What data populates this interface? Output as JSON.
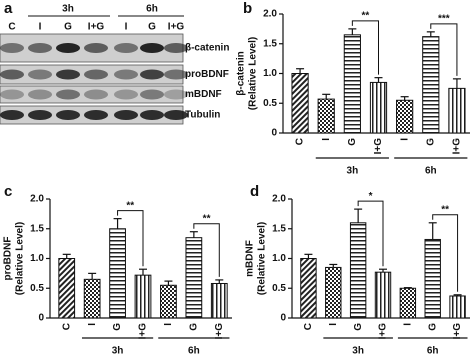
{
  "blot": {
    "panel": "a",
    "groups": [
      "3h",
      "6h"
    ],
    "lanes": [
      "C",
      "I",
      "G",
      "I+G",
      "I",
      "G",
      "I+G"
    ],
    "rows": [
      "β-catenin",
      "proBDNF",
      "mBDNF",
      "Tubulin"
    ]
  },
  "chart_data": [
    {
      "type": "bar",
      "panel": "b",
      "ylabel_lines": [
        "β-catenin",
        "(Relative Level)"
      ],
      "categories": [
        "C",
        "I",
        "G",
        "I+G",
        "I",
        "G",
        "I+G"
      ],
      "values": [
        1.0,
        0.57,
        1.65,
        0.85,
        0.55,
        1.62,
        0.75
      ],
      "errors": [
        0.08,
        0.08,
        0.1,
        0.08,
        0.06,
        0.08,
        0.16
      ],
      "groups": [
        "3h",
        "6h"
      ],
      "annotations": [
        "**",
        "***"
      ],
      "ylim": [
        0,
        2
      ],
      "yticks": [
        0,
        0.5,
        {
          "value": 1,
          "label": "1.0"
        },
        1.5,
        {
          "value": 2,
          "label": "2.0"
        }
      ]
    },
    {
      "type": "bar",
      "panel": "c",
      "ylabel_lines": [
        "proBDNF",
        "(Relative Level)"
      ],
      "categories": [
        "C",
        "I",
        "G",
        "I+G",
        "I",
        "G",
        "I+G"
      ],
      "values": [
        1.0,
        0.65,
        1.5,
        0.72,
        0.55,
        1.35,
        0.58
      ],
      "errors": [
        0.07,
        0.1,
        0.17,
        0.1,
        0.07,
        0.1,
        0.06
      ],
      "groups": [
        "3h",
        "6h"
      ],
      "annotations": [
        "**",
        "**"
      ],
      "ylim": [
        0,
        2
      ],
      "yticks": [
        0,
        0.5,
        {
          "value": 1,
          "label": "1.0"
        },
        1.5,
        {
          "value": 2,
          "label": "2.0"
        }
      ]
    },
    {
      "type": "bar",
      "panel": "d",
      "ylabel_lines": [
        "mBDNF",
        "(Relative Level)"
      ],
      "categories": [
        "C",
        "I",
        "G",
        "I+G",
        "I",
        "G",
        "I+G"
      ],
      "values": [
        1.0,
        0.85,
        1.6,
        0.77,
        0.5,
        1.32,
        0.37
      ],
      "errors": [
        0.07,
        0.05,
        0.23,
        0.05,
        0.01,
        0.28,
        0.02
      ],
      "groups": [
        "3h",
        "6h"
      ],
      "annotations": [
        "*",
        "**"
      ],
      "ylim": [
        0,
        2
      ],
      "yticks": [
        0,
        0.5,
        {
          "value": 1,
          "label": "1.0"
        },
        1.5,
        {
          "value": 2,
          "label": "2.0"
        }
      ]
    }
  ]
}
